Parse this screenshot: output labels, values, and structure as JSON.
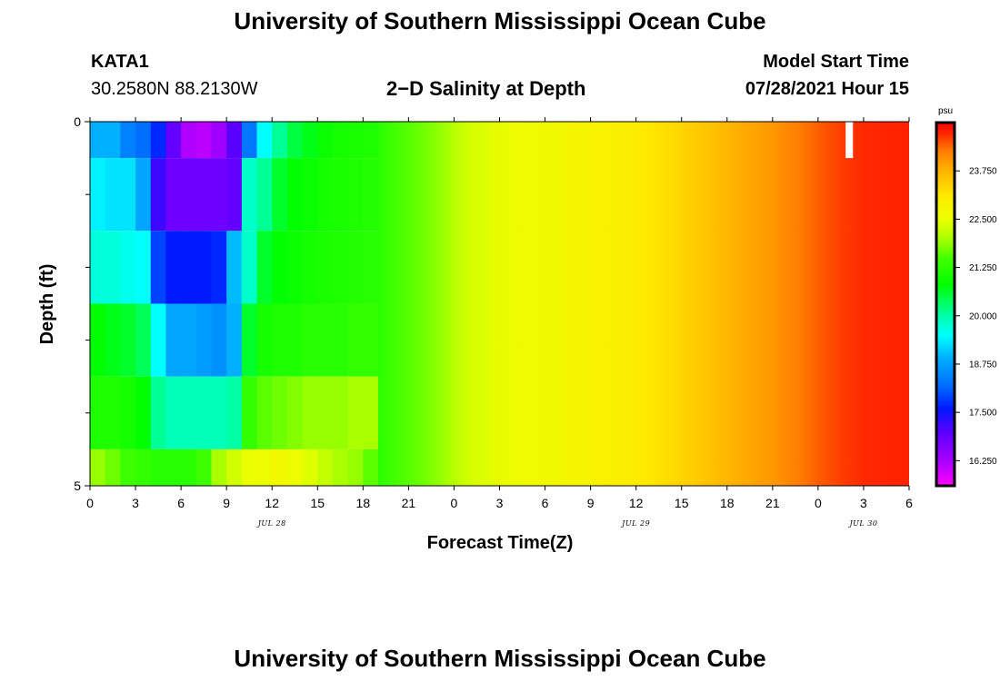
{
  "header": {
    "title_top": "University of Southern Mississippi Ocean Cube",
    "title_bottom": "University of Southern Mississippi Ocean Cube",
    "station": "KATA1",
    "coordinates": "30.2580N  88.2130W",
    "plot_title": "2−D Salinity at Depth",
    "model_label": "Model Start Time",
    "model_time": "07/28/2021 Hour 15"
  },
  "chart_data": {
    "type": "heatmap",
    "title": "2−D Salinity at Depth",
    "xlabel": "Forecast Time(Z)",
    "ylabel": "Depth (ft)",
    "x_tick_labels": [
      "0",
      "3",
      "6",
      "9",
      "12",
      "15",
      "18",
      "21",
      "0",
      "3",
      "6",
      "9",
      "12",
      "15",
      "18",
      "21",
      "0",
      "3",
      "6"
    ],
    "x_range_hours": [
      0,
      54
    ],
    "x_date_labels": [
      {
        "text": "JUL 28",
        "hour": 12
      },
      {
        "text": "JUL 29",
        "hour": 36
      },
      {
        "text": "JUL 30",
        "hour": 51
      }
    ],
    "y_range": [
      0,
      5
    ],
    "y_tick_labels": [
      "0",
      "5"
    ],
    "y_minor_ticks": [
      1,
      2,
      3,
      4
    ],
    "depth_layers": [
      {
        "top": 0.0,
        "bottom": 0.5
      },
      {
        "top": 0.5,
        "bottom": 1.5
      },
      {
        "top": 1.5,
        "bottom": 2.5
      },
      {
        "top": 2.5,
        "bottom": 3.5
      },
      {
        "top": 3.5,
        "bottom": 4.5
      },
      {
        "top": 4.5,
        "bottom": 5.0
      }
    ],
    "early_hours": [
      0,
      1,
      2,
      3,
      4,
      5,
      6,
      7,
      8,
      9,
      10,
      11,
      12,
      13,
      14,
      15,
      16,
      17,
      18
    ],
    "early_values": [
      [
        18.9,
        18.9,
        18.4,
        18.2,
        17.7,
        16.9,
        16.2,
        16.1,
        16.3,
        17.0,
        18.3,
        19.5,
        20.1,
        20.5,
        20.7,
        20.9,
        21.0,
        21.05,
        21.1
      ],
      [
        19.4,
        19.3,
        19.3,
        18.8,
        17.2,
        16.8,
        16.8,
        16.8,
        16.8,
        16.9,
        19.8,
        20.1,
        20.6,
        20.8,
        20.9,
        21.0,
        21.05,
        21.1,
        21.15
      ],
      [
        19.7,
        19.7,
        19.6,
        19.5,
        17.9,
        17.6,
        17.6,
        17.6,
        17.7,
        19.0,
        19.8,
        20.6,
        20.8,
        20.9,
        21.0,
        21.05,
        21.1,
        21.15,
        21.2
      ],
      [
        20.8,
        20.7,
        20.6,
        20.4,
        19.5,
        18.8,
        18.8,
        18.7,
        18.6,
        18.9,
        20.6,
        21.0,
        21.1,
        21.1,
        21.2,
        21.2,
        21.2,
        21.3,
        21.3
      ],
      [
        21.1,
        21.1,
        21.0,
        20.8,
        20.1,
        19.9,
        19.9,
        19.9,
        19.9,
        20.0,
        21.3,
        21.6,
        21.7,
        21.8,
        21.9,
        21.9,
        21.9,
        22.0,
        22.0
      ],
      [
        21.9,
        21.7,
        21.4,
        21.3,
        21.2,
        21.2,
        21.2,
        21.4,
        22.0,
        22.3,
        22.5,
        22.6,
        22.7,
        22.6,
        22.4,
        22.2,
        22.0,
        21.9,
        21.6
      ]
    ],
    "trend_hours": [
      18,
      21,
      24,
      27,
      30,
      33,
      36,
      39,
      42,
      45,
      46.5,
      48,
      49.5,
      51,
      54
    ],
    "trend_values": [
      21.2,
      21.7,
      22.3,
      22.6,
      22.7,
      22.9,
      23.1,
      23.4,
      23.75,
      24.05,
      24.25,
      24.45,
      24.6,
      24.7,
      24.75
    ],
    "colorbar": {
      "unit": "psu",
      "tick_labels": [
        "23.750",
        "22.500",
        "21.250",
        "20.000",
        "18.750",
        "17.500",
        "16.250"
      ],
      "range": [
        15.6,
        25.0
      ]
    },
    "annotation": {
      "type": "white-bar",
      "hour": 50,
      "depth_top": 0.0,
      "depth_bottom": 0.5
    },
    "colors": {
      "background": "#ffffff",
      "axis": "#000000",
      "marker": "#ffffff"
    }
  }
}
